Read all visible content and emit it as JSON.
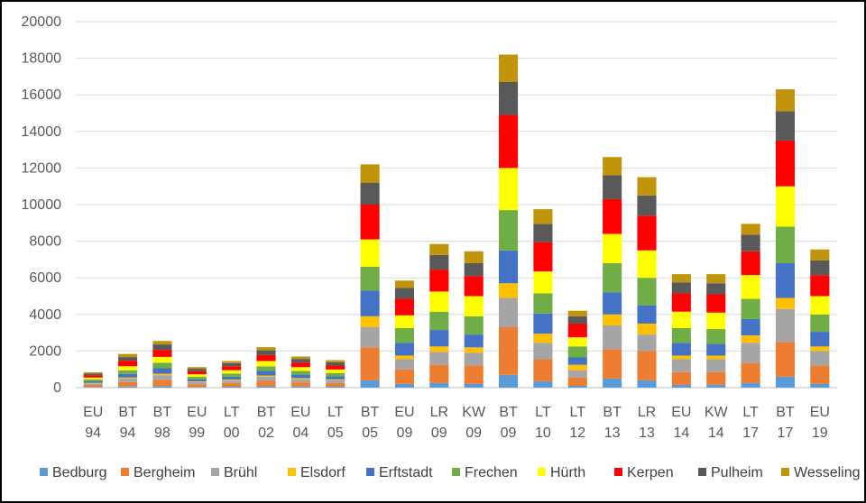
{
  "chart_data": {
    "type": "bar",
    "stacked": true,
    "title": "",
    "xlabel": "",
    "ylabel": "",
    "ylim": [
      0,
      20000
    ],
    "y_ticks": [
      0,
      2000,
      4000,
      6000,
      8000,
      10000,
      12000,
      14000,
      16000,
      18000,
      20000
    ],
    "gridlines": true,
    "legend_position": "bottom",
    "categories": [
      [
        "EU",
        "94"
      ],
      [
        "BT",
        "94"
      ],
      [
        "BT",
        "98"
      ],
      [
        "EU",
        "99"
      ],
      [
        "LT",
        "00"
      ],
      [
        "BT",
        "02"
      ],
      [
        "EU",
        "04"
      ],
      [
        "LT",
        "05"
      ],
      [
        "BT",
        "05"
      ],
      [
        "EU",
        "09"
      ],
      [
        "LR",
        "09"
      ],
      [
        "KW",
        "09"
      ],
      [
        "BT",
        "09"
      ],
      [
        "LT",
        "10"
      ],
      [
        "LT",
        "12"
      ],
      [
        "BT",
        "13"
      ],
      [
        "LR",
        "13"
      ],
      [
        "EU",
        "14"
      ],
      [
        "KW",
        "14"
      ],
      [
        "LT",
        "17"
      ],
      [
        "BT",
        "17"
      ],
      [
        "EU",
        "19"
      ]
    ],
    "series": [
      {
        "name": "Bedburg",
        "color": "#5B9BD5",
        "values": [
          30,
          60,
          80,
          40,
          50,
          70,
          60,
          50,
          400,
          200,
          250,
          200,
          700,
          350,
          100,
          500,
          400,
          150,
          150,
          250,
          600,
          200
        ]
      },
      {
        "name": "Bergheim",
        "color": "#ED7D31",
        "values": [
          120,
          250,
          350,
          150,
          200,
          300,
          230,
          200,
          1800,
          800,
          1000,
          1000,
          2600,
          1200,
          450,
          1600,
          1600,
          700,
          700,
          1100,
          1900,
          1000
        ]
      },
      {
        "name": "Brühl",
        "color": "#A5A5A5",
        "values": [
          80,
          180,
          250,
          110,
          140,
          220,
          170,
          150,
          1100,
          550,
          700,
          700,
          1600,
          900,
          400,
          1300,
          900,
          700,
          700,
          1100,
          1800,
          800
        ]
      },
      {
        "name": "Elsdorf",
        "color": "#FFC000",
        "values": [
          30,
          60,
          80,
          40,
          50,
          70,
          60,
          50,
          600,
          200,
          300,
          300,
          800,
          500,
          300,
          600,
          600,
          200,
          200,
          400,
          600,
          250
        ]
      },
      {
        "name": "Erftstadt",
        "color": "#4472C4",
        "values": [
          90,
          200,
          300,
          120,
          160,
          250,
          190,
          170,
          1400,
          700,
          900,
          700,
          1800,
          1100,
          400,
          1200,
          1000,
          700,
          650,
          900,
          1900,
          800
        ]
      },
      {
        "name": "Frechen",
        "color": "#70AD47",
        "values": [
          100,
          200,
          300,
          130,
          170,
          260,
          200,
          180,
          1300,
          800,
          1000,
          1000,
          2200,
          1100,
          600,
          1600,
          1500,
          800,
          800,
          1100,
          2000,
          950
        ]
      },
      {
        "name": "Hürth",
        "color": "#FFFF00",
        "values": [
          100,
          220,
          320,
          140,
          180,
          280,
          210,
          190,
          1500,
          700,
          1100,
          1100,
          2300,
          1200,
          500,
          1600,
          1500,
          900,
          900,
          1300,
          2200,
          1000
        ]
      },
      {
        "name": "Kerpen",
        "color": "#FF0000",
        "values": [
          120,
          300,
          380,
          170,
          220,
          330,
          250,
          220,
          1900,
          900,
          1200,
          1100,
          2900,
          1600,
          750,
          1900,
          1900,
          1000,
          1000,
          1300,
          2500,
          1150
        ]
      },
      {
        "name": "Pulheim",
        "color": "#595959",
        "values": [
          100,
          200,
          300,
          130,
          170,
          260,
          200,
          180,
          1200,
          600,
          800,
          700,
          1800,
          1000,
          400,
          1300,
          1100,
          600,
          600,
          900,
          1600,
          800
        ]
      },
      {
        "name": "Wesseling",
        "color": "#C0950C",
        "values": [
          70,
          170,
          190,
          90,
          110,
          170,
          130,
          110,
          1000,
          400,
          600,
          650,
          1500,
          800,
          300,
          1000,
          1000,
          450,
          500,
          600,
          1200,
          600
        ]
      }
    ]
  }
}
